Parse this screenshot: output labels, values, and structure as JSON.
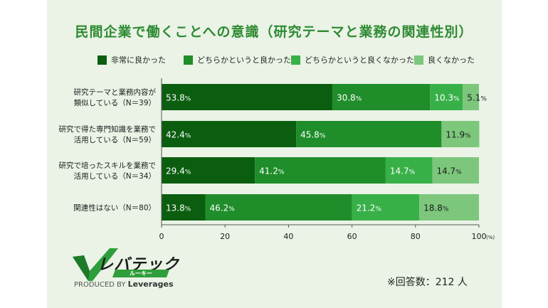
{
  "title": "民間企業で働くことへの意識（研究テーマと業務の関連性別）",
  "legend": [
    {
      "label": "非常に良かった",
      "color": "#0b5e0f"
    },
    {
      "label": "どちらかというと良かった",
      "color": "#1f8d2a"
    },
    {
      "label": "どちらかというと良くなかった",
      "color": "#38b048"
    },
    {
      "label": "良くなかった",
      "color": "#7cc77c"
    }
  ],
  "chart_data": {
    "type": "bar",
    "orientation": "horizontal",
    "stacked": true,
    "categories": [
      [
        "研究テーマと業務内容が",
        "類似している（N＝39）"
      ],
      [
        "研究で得た専門知識を業務で",
        "活用している（N＝59）"
      ],
      [
        "研究で培ったスキルを業務で",
        "活用している（N＝34）"
      ],
      [
        "関連性はない（N＝80）"
      ]
    ],
    "series": [
      {
        "name": "非常に良かった",
        "values": [
          53.8,
          42.4,
          29.4,
          13.8
        ]
      },
      {
        "name": "どちらかというと良かった",
        "values": [
          30.8,
          45.8,
          41.2,
          46.2
        ]
      },
      {
        "name": "どちらかというと良くなかった",
        "values": [
          10.3,
          0,
          14.7,
          21.2
        ]
      },
      {
        "name": "良くなかった",
        "values": [
          5.1,
          11.9,
          14.7,
          18.8
        ]
      }
    ],
    "value_labels": [
      [
        "53.8",
        "30.8",
        "10.3",
        "5.1"
      ],
      [
        "42.4",
        "45.8",
        "",
        "11.9"
      ],
      [
        "29.4",
        "41.2",
        "14.7",
        "14.7"
      ],
      [
        "13.8",
        "46.2",
        "21.2",
        "18.8"
      ]
    ],
    "label_unit": "%",
    "x_ticks": [
      "0",
      "20",
      "40",
      "60",
      "80",
      "100"
    ],
    "x_unit": "(%)",
    "xlim": [
      0,
      100
    ],
    "legend_position": "top"
  },
  "logo": {
    "name": "レバテック",
    "sub": "ルーキー",
    "produced_by": "PRODUCED BY",
    "brand": "Leverages"
  },
  "note": "※回答数：212 人"
}
